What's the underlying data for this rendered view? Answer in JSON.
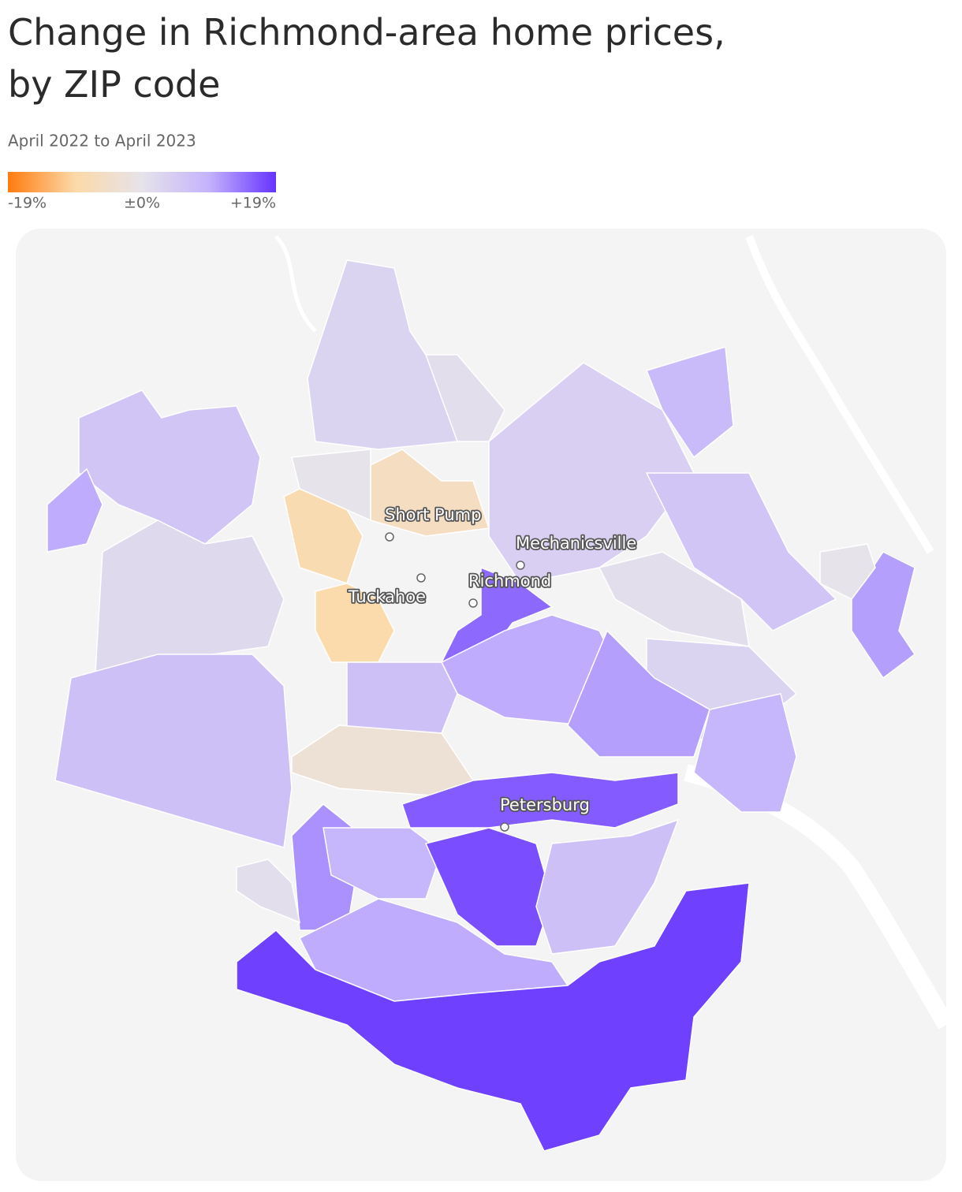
{
  "header": {
    "title": "Change in Richmond-area home prices, by ZIP code",
    "subtitle": "April 2022 to April 2023"
  },
  "map": {
    "legend": {
      "ticks": [
        {
          "value": -19,
          "label": "-19%"
        },
        {
          "value": 0,
          "label": "±0%"
        },
        {
          "value": 19,
          "label": "+19%"
        }
      ],
      "colors": [
        "#ff7b0f",
        "#fcd9a8",
        "#e6e3ea",
        "#c4b3fc",
        "#6633ff"
      ]
    },
    "regions": [
      6,
      10,
      2,
      7,
      3,
      1,
      -6,
      -8,
      -9,
      0,
      4,
      8,
      6,
      1,
      3,
      15,
      10,
      7,
      -3,
      11,
      9,
      16,
      12,
      9,
      17,
      7,
      10,
      18,
      1,
      11,
      0
    ],
    "cities": [
      "Short Pump",
      "Mechanicsville",
      "Richmond",
      "Tuckahoe",
      "Petersburg"
    ]
  }
}
